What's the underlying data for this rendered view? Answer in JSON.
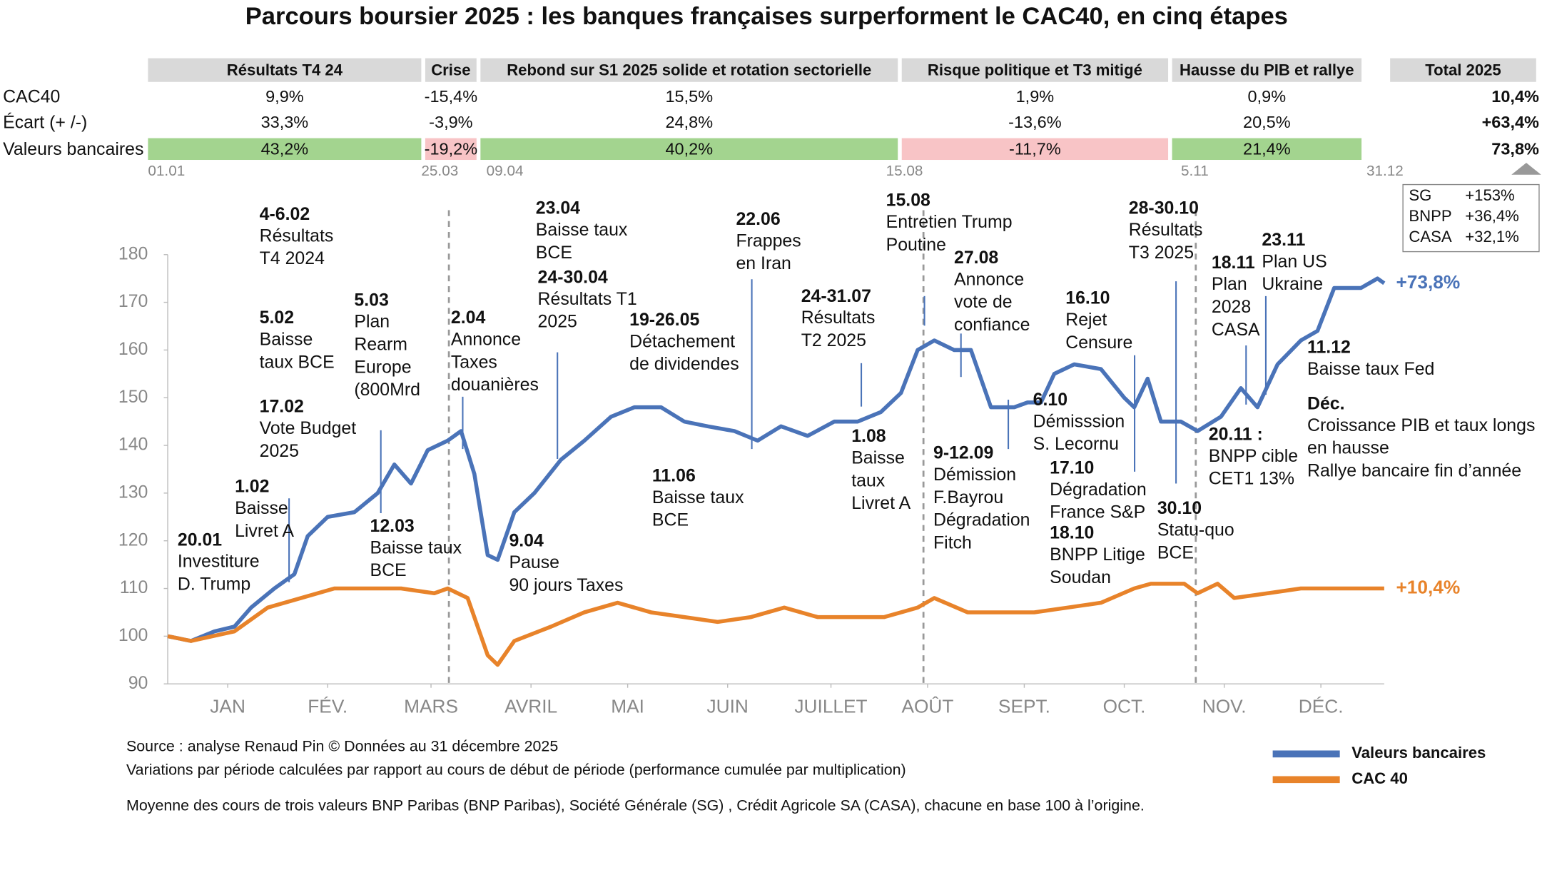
{
  "chart_data": {
    "type": "line",
    "title": "Parcours boursier 2025 : les banques françaises surperforment le CAC40, en cinq étapes",
    "xlim": [
      0,
      365
    ],
    "ylim": [
      90,
      180
    ],
    "yticks": [
      90,
      100,
      110,
      120,
      130,
      140,
      150,
      160,
      170,
      180
    ],
    "xticks": [
      {
        "value": 18,
        "label": "JAN"
      },
      {
        "value": 48,
        "label": "FÉV."
      },
      {
        "value": 79,
        "label": "MARS"
      },
      {
        "value": 109,
        "label": "AVRIL"
      },
      {
        "value": 138,
        "label": "MAI"
      },
      {
        "value": 168,
        "label": "JUIN"
      },
      {
        "value": 199,
        "label": "JUILLET"
      },
      {
        "value": 228,
        "label": "AOÛT"
      },
      {
        "value": 257,
        "label": "SEPT."
      },
      {
        "value": 287,
        "label": "OCT."
      },
      {
        "value": 317,
        "label": "NOV."
      },
      {
        "value": 346,
        "label": "DÉC."
      }
    ],
    "series": [
      {
        "name": "Valeurs bancaires",
        "color": "#4a73b8",
        "end_label": "+73,8%",
        "x": [
          0,
          7,
          14,
          20,
          25,
          32,
          38,
          42,
          48,
          56,
          63,
          68,
          73,
          78,
          84,
          88,
          92,
          96,
          99,
          104,
          110,
          118,
          125,
          133,
          140,
          148,
          155,
          162,
          170,
          177,
          184,
          192,
          200,
          207,
          214,
          220,
          225,
          230,
          236,
          241,
          247,
          254,
          258,
          262,
          266,
          272,
          280,
          287,
          290,
          294,
          298,
          304,
          309,
          316,
          322,
          327,
          333,
          340,
          345,
          350,
          358,
          363,
          365
        ],
        "values": [
          100,
          99,
          101,
          102,
          106,
          110,
          113,
          121,
          125,
          126,
          130,
          136,
          132,
          139,
          141,
          143,
          134,
          117,
          116,
          126,
          130,
          137,
          141,
          146,
          148,
          148,
          145,
          144,
          143,
          141,
          144,
          142,
          145,
          145,
          147,
          151,
          160,
          162,
          160,
          160,
          148,
          148,
          149,
          149,
          155,
          157,
          156,
          150,
          148,
          154,
          145,
          145,
          143,
          146,
          152,
          148,
          157,
          162,
          164,
          173,
          173,
          175,
          174
        ]
      },
      {
        "name": "CAC 40",
        "color": "#e8832a",
        "end_label": "+10,4%",
        "x": [
          0,
          7,
          20,
          30,
          40,
          50,
          60,
          70,
          80,
          84,
          90,
          96,
          99,
          104,
          115,
          125,
          135,
          145,
          155,
          165,
          175,
          185,
          195,
          205,
          215,
          225,
          230,
          240,
          250,
          260,
          270,
          280,
          290,
          295,
          300,
          305,
          309,
          315,
          320,
          330,
          340,
          350,
          365
        ],
        "values": [
          100,
          99,
          101,
          106,
          108,
          110,
          110,
          110,
          109,
          110,
          108,
          96,
          94,
          99,
          102,
          105,
          107,
          105,
          104,
          103,
          104,
          106,
          104,
          104,
          104,
          106,
          108,
          105,
          105,
          105,
          106,
          107,
          110,
          111,
          111,
          111,
          109,
          111,
          108,
          109,
          110,
          110,
          110
        ]
      }
    ],
    "annotations": [
      {
        "date": "20.01",
        "lines": [
          "Investiture",
          "D. Trump"
        ]
      },
      {
        "date": "1.02",
        "lines": [
          "Baisse",
          "Livret A"
        ]
      },
      {
        "date": "4-6.02",
        "lines": [
          "Résultats",
          "T4 2024"
        ]
      },
      {
        "date": "5.02",
        "lines": [
          "Baisse",
          "taux BCE"
        ]
      },
      {
        "date": "17.02",
        "lines": [
          "Vote Budget",
          "2025"
        ]
      },
      {
        "date": "5.03",
        "lines": [
          "Plan",
          "Rearm",
          "Europe",
          "(800Mrd"
        ]
      },
      {
        "date": "12.03",
        "lines": [
          "Baisse taux",
          "BCE"
        ]
      },
      {
        "date": "2.04",
        "lines": [
          "Annonce",
          "Taxes",
          "douanières"
        ]
      },
      {
        "date": "9.04",
        "lines": [
          "Pause",
          "90 jours Taxes"
        ]
      },
      {
        "date": "23.04",
        "lines": [
          "Baisse taux",
          "BCE"
        ]
      },
      {
        "date": "24-30.04",
        "lines": [
          "Résultats T1",
          "2025"
        ]
      },
      {
        "date": "19-26.05",
        "lines": [
          "Détachement",
          "de dividendes"
        ]
      },
      {
        "date": "11.06",
        "lines": [
          "Baisse taux",
          "BCE"
        ]
      },
      {
        "date": "22.06",
        "lines": [
          "Frappes",
          "en Iran"
        ]
      },
      {
        "date": "24-31.07",
        "lines": [
          "Résultats",
          "T2 2025"
        ]
      },
      {
        "date": "1.08",
        "lines": [
          "Baisse",
          "taux",
          "Livret A"
        ]
      },
      {
        "date": "15.08",
        "lines": [
          "Entretien Trump",
          "Poutine"
        ]
      },
      {
        "date": "27.08",
        "lines": [
          "Annonce",
          "vote de",
          "confiance"
        ]
      },
      {
        "date": "9-12.09",
        "lines": [
          "Démission",
          "F.Bayrou",
          "Dégradation",
          "Fitch"
        ]
      },
      {
        "date": "6.10",
        "lines": [
          "Démisssion",
          "S. Lecornu"
        ]
      },
      {
        "date": "16.10",
        "lines": [
          "Rejet",
          "Censure"
        ]
      },
      {
        "date": "17.10",
        "lines": [
          "Dégradation",
          "France S&P"
        ]
      },
      {
        "date": "18.10",
        "lines": [
          "BNPP Litige",
          "Soudan"
        ]
      },
      {
        "date": "28-30.10",
        "lines": [
          "Résultats",
          "T3 2025"
        ]
      },
      {
        "date": "30.10",
        "lines": [
          "Statu-quo",
          "BCE"
        ]
      },
      {
        "date": "18.11",
        "lines": [
          "Plan",
          "2028",
          "CASA"
        ]
      },
      {
        "date": "23.11",
        "lines": [
          "Plan US",
          "Ukraine"
        ]
      },
      {
        "date": "11.12",
        "lines": [
          "Baisse taux Fed"
        ]
      },
      {
        "date": "20.11 :",
        "lines": [
          "BNPP cible",
          "CET1 13%"
        ]
      },
      {
        "date": "Déc.",
        "lines": [
          "Croissance PIB et taux longs",
          "en hausse",
          "Rallye bancaire fin d’année"
        ]
      }
    ]
  },
  "summary": {
    "row_labels": [
      "CAC40",
      "Écart (+ /-)",
      "Valeurs bancaires"
    ],
    "periods": [
      {
        "name": "Résultats T4 24",
        "cells": [
          "9,9%",
          "33,3%",
          "43,2%"
        ],
        "bank_color": "#a3d48f"
      },
      {
        "name": "Crise",
        "cells": [
          "-15,4%",
          "-3,9%",
          "-19,2%"
        ],
        "bank_color": "#f8c4c6"
      },
      {
        "name": "Rebond sur S1 2025 solide et rotation sectorielle",
        "cells": [
          "15,5%",
          "24,8%",
          "40,2%"
        ],
        "bank_color": "#a3d48f"
      },
      {
        "name": "Risque politique et T3 mitigé",
        "cells": [
          "1,9%",
          "-13,6%",
          "-11,7%"
        ],
        "bank_color": "#f8c4c6"
      },
      {
        "name": "Hausse du PIB et rallye",
        "cells": [
          "0,9%",
          "20,5%",
          "21,4%"
        ],
        "bank_color": "#a3d48f"
      }
    ],
    "total": {
      "name": "Total 2025",
      "cells": [
        "10,4%",
        "+63,4%",
        "73,8%"
      ]
    },
    "dates": [
      "01.01",
      "25.03",
      "09.04",
      "15.08",
      "5.11",
      "31.12"
    ],
    "box": [
      [
        "SG",
        "+153%"
      ],
      [
        "BNPP",
        "+36,4%"
      ],
      [
        "CASA",
        "+32,1%"
      ]
    ]
  },
  "notes": [
    "Source : analyse Renaud Pin © Données au 31 décembre 2025",
    "Variations par période calculées par rapport au cours de début de période (performance cumulée par multiplication)",
    "Moyenne des cours de trois valeurs BNP Paribas (BNP Paribas), Société Générale (SG) , Crédit Agricole SA (CASA), chacune en base 100 à l’origine."
  ]
}
